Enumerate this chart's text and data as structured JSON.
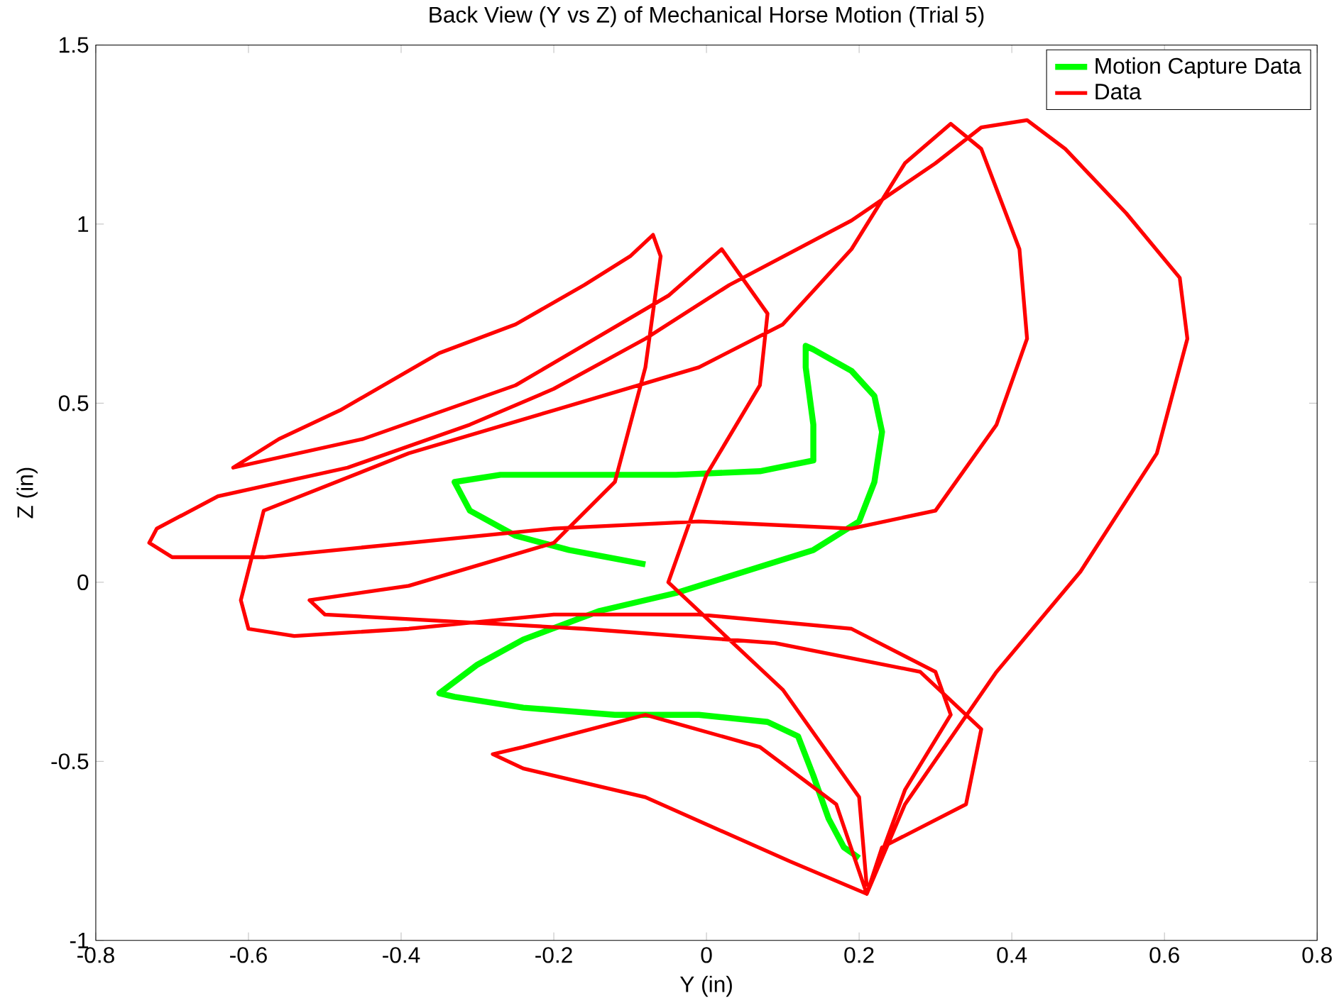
{
  "chart_data": {
    "type": "line",
    "title": "Back View (Y vs Z) of Mechanical Horse Motion (Trial 5)",
    "xlabel": "Y (in)",
    "ylabel": "Z (in)",
    "xlim": [
      -0.8,
      0.8
    ],
    "ylim": [
      -1,
      1.5
    ],
    "xticks": [
      -0.8,
      -0.6,
      -0.4,
      -0.2,
      0,
      0.2,
      0.4,
      0.6,
      0.8
    ],
    "yticks": [
      -1,
      -0.5,
      0,
      0.5,
      1,
      1.5
    ],
    "legend": "top right",
    "grid": false,
    "marker": "none",
    "line_style": "solid",
    "series": [
      {
        "name": "Motion Capture Data",
        "color": "#00ff00",
        "x": [
          0.2,
          0.18,
          0.16,
          0.14,
          0.12,
          0.08,
          -0.01,
          -0.12,
          -0.24,
          -0.33,
          -0.35,
          -0.3,
          -0.24,
          -0.14,
          -0.04,
          0.05,
          0.14,
          0.2,
          0.22,
          0.23,
          0.22,
          0.19,
          0.14,
          0.13,
          0.13,
          0.14,
          0.14,
          0.07,
          -0.04,
          -0.16,
          -0.27,
          -0.33,
          -0.31,
          -0.25,
          -0.18,
          -0.08
        ],
        "values": [
          -0.77,
          -0.74,
          -0.66,
          -0.54,
          -0.43,
          -0.39,
          -0.37,
          -0.37,
          -0.35,
          -0.32,
          -0.31,
          -0.23,
          -0.16,
          -0.08,
          -0.03,
          0.03,
          0.09,
          0.17,
          0.28,
          0.42,
          0.52,
          0.59,
          0.65,
          0.66,
          0.6,
          0.44,
          0.34,
          0.31,
          0.3,
          0.3,
          0.3,
          0.28,
          0.2,
          0.13,
          0.09,
          0.05
        ]
      },
      {
        "name": "Data",
        "color": "#ff0000",
        "x": [
          0.21,
          0.26,
          0.38,
          0.49,
          0.59,
          0.63,
          0.62,
          0.55,
          0.47,
          0.42,
          0.36,
          0.3,
          0.19,
          0.03,
          -0.08,
          -0.2,
          -0.31,
          -0.47,
          -0.64,
          -0.72,
          -0.73,
          -0.7,
          -0.58,
          -0.39,
          -0.2,
          -0.01,
          0.19,
          0.3,
          0.38,
          0.42,
          0.41,
          0.36,
          0.32,
          0.26,
          0.19,
          0.1,
          -0.01,
          -0.2,
          -0.39,
          -0.58,
          -0.61,
          -0.6,
          -0.54,
          -0.39,
          -0.2,
          -0.01,
          0.19,
          0.3,
          0.32,
          0.26,
          0.21,
          0.17,
          0.07,
          -0.08,
          -0.24,
          -0.28,
          -0.24,
          -0.08,
          0.11,
          0.21,
          0.23,
          0.34,
          0.36,
          0.28,
          0.09,
          -0.16,
          -0.5,
          -0.52,
          -0.39,
          -0.2,
          -0.12,
          -0.08,
          -0.06,
          -0.07,
          -0.1,
          -0.16,
          -0.25,
          -0.35,
          -0.48,
          -0.56,
          -0.62,
          -0.45,
          -0.25,
          -0.05,
          0.02,
          0.08,
          0.07,
          0.0,
          -0.05,
          0.1,
          0.2,
          0.21
        ],
        "values": [
          -0.87,
          -0.62,
          -0.25,
          0.03,
          0.36,
          0.68,
          0.85,
          1.03,
          1.21,
          1.29,
          1.27,
          1.17,
          1.01,
          0.83,
          0.68,
          0.54,
          0.44,
          0.32,
          0.24,
          0.15,
          0.11,
          0.07,
          0.07,
          0.11,
          0.15,
          0.17,
          0.15,
          0.2,
          0.44,
          0.68,
          0.93,
          1.21,
          1.28,
          1.17,
          0.93,
          0.72,
          0.6,
          0.48,
          0.36,
          0.2,
          -0.05,
          -0.13,
          -0.15,
          -0.13,
          -0.09,
          -0.09,
          -0.13,
          -0.25,
          -0.37,
          -0.58,
          -0.87,
          -0.62,
          -0.46,
          -0.37,
          -0.46,
          -0.48,
          -0.52,
          -0.6,
          -0.78,
          -0.87,
          -0.74,
          -0.62,
          -0.41,
          -0.25,
          -0.17,
          -0.13,
          -0.09,
          -0.05,
          -0.01,
          0.11,
          0.28,
          0.6,
          0.91,
          0.97,
          0.91,
          0.83,
          0.72,
          0.64,
          0.48,
          0.4,
          0.32,
          0.4,
          0.55,
          0.8,
          0.93,
          0.75,
          0.55,
          0.3,
          0.0,
          -0.3,
          -0.6,
          -0.85
        ]
      }
    ]
  }
}
